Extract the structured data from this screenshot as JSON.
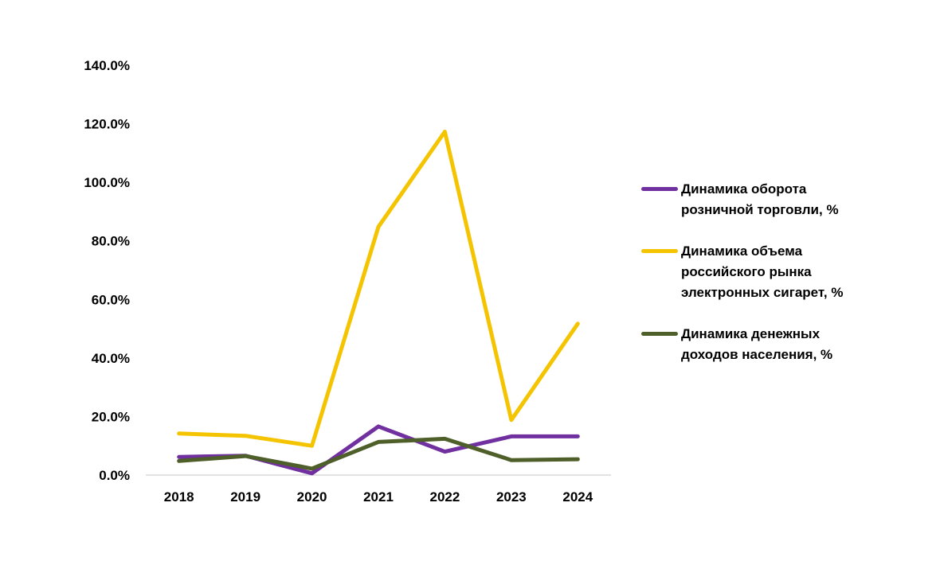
{
  "chart_data": {
    "type": "line",
    "title": "",
    "xlabel": "",
    "ylabel": "",
    "categories": [
      "2018",
      "2019",
      "2020",
      "2021",
      "2022",
      "2023",
      "2024"
    ],
    "ylim": [
      0,
      140
    ],
    "yticks": [
      "0.0%",
      "20.0%",
      "40.0%",
      "60.0%",
      "80.0%",
      "100.0%",
      "120.0%",
      "140.0%"
    ],
    "grid": false,
    "legend_position": "right",
    "series": [
      {
        "name": "Динамика оборота розничной торговли, %",
        "color": "#7030a0",
        "values": [
          6.2,
          6.6,
          0.6,
          16.6,
          8.0,
          13.2,
          13.2
        ]
      },
      {
        "name": "Динамика объема российского рынка электронных сигарет, %",
        "color": "#f5c400",
        "values": [
          14.2,
          13.4,
          10.0,
          84.8,
          117.3,
          18.8,
          51.7
        ]
      },
      {
        "name": "Динамика денежных доходов населения, %",
        "color": "#4e5f2a",
        "values": [
          4.8,
          6.5,
          2.2,
          11.3,
          12.4,
          5.1,
          5.4
        ]
      }
    ]
  }
}
